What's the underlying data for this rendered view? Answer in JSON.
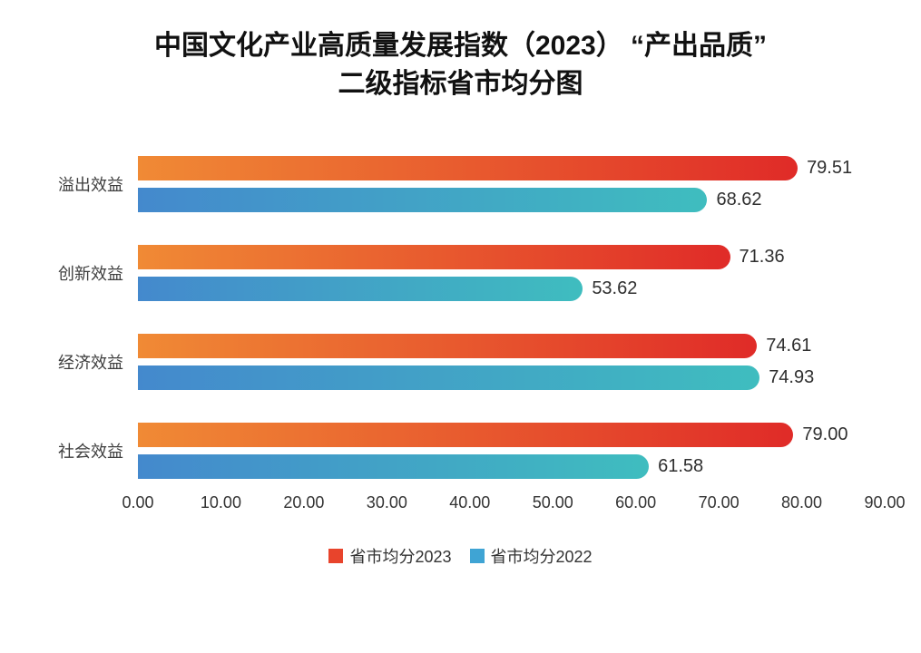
{
  "title": {
    "line1": "中国文化产业高质量发展指数（2023） “产出品质”",
    "line2": "二级指标省市均分图"
  },
  "colors": {
    "background": "#ffffff",
    "title_text": "#111111",
    "axis_text": "#333333",
    "value_text": "#2f2f2f"
  },
  "chart_data": {
    "type": "bar",
    "orientation": "horizontal",
    "title": "中国文化产业高质量发展指数（2023）“产出品质”二级指标省市均分图",
    "categories": [
      "溢出效益",
      "创新效益",
      "经济效益",
      "社会效益"
    ],
    "series": [
      {
        "name": "省市均分2023",
        "values": [
          79.51,
          71.36,
          74.61,
          79.0
        ],
        "gradient_start": "#f08a35",
        "gradient_end": "#e02b28",
        "legend_color": "#e8442c"
      },
      {
        "name": "省市均分2022",
        "values": [
          68.62,
          53.62,
          74.93,
          61.58
        ],
        "gradient_start": "#4489cd",
        "gradient_end": "#3fbdbf",
        "legend_color": "#3fa4d4"
      }
    ],
    "xlim": [
      0,
      90
    ],
    "x_ticks": [
      "0.00",
      "10.00",
      "20.00",
      "30.00",
      "40.00",
      "50.00",
      "60.00",
      "70.00",
      "80.00",
      "90.00"
    ],
    "value_decimals": 2,
    "grid": false,
    "legend_position": "bottom"
  }
}
